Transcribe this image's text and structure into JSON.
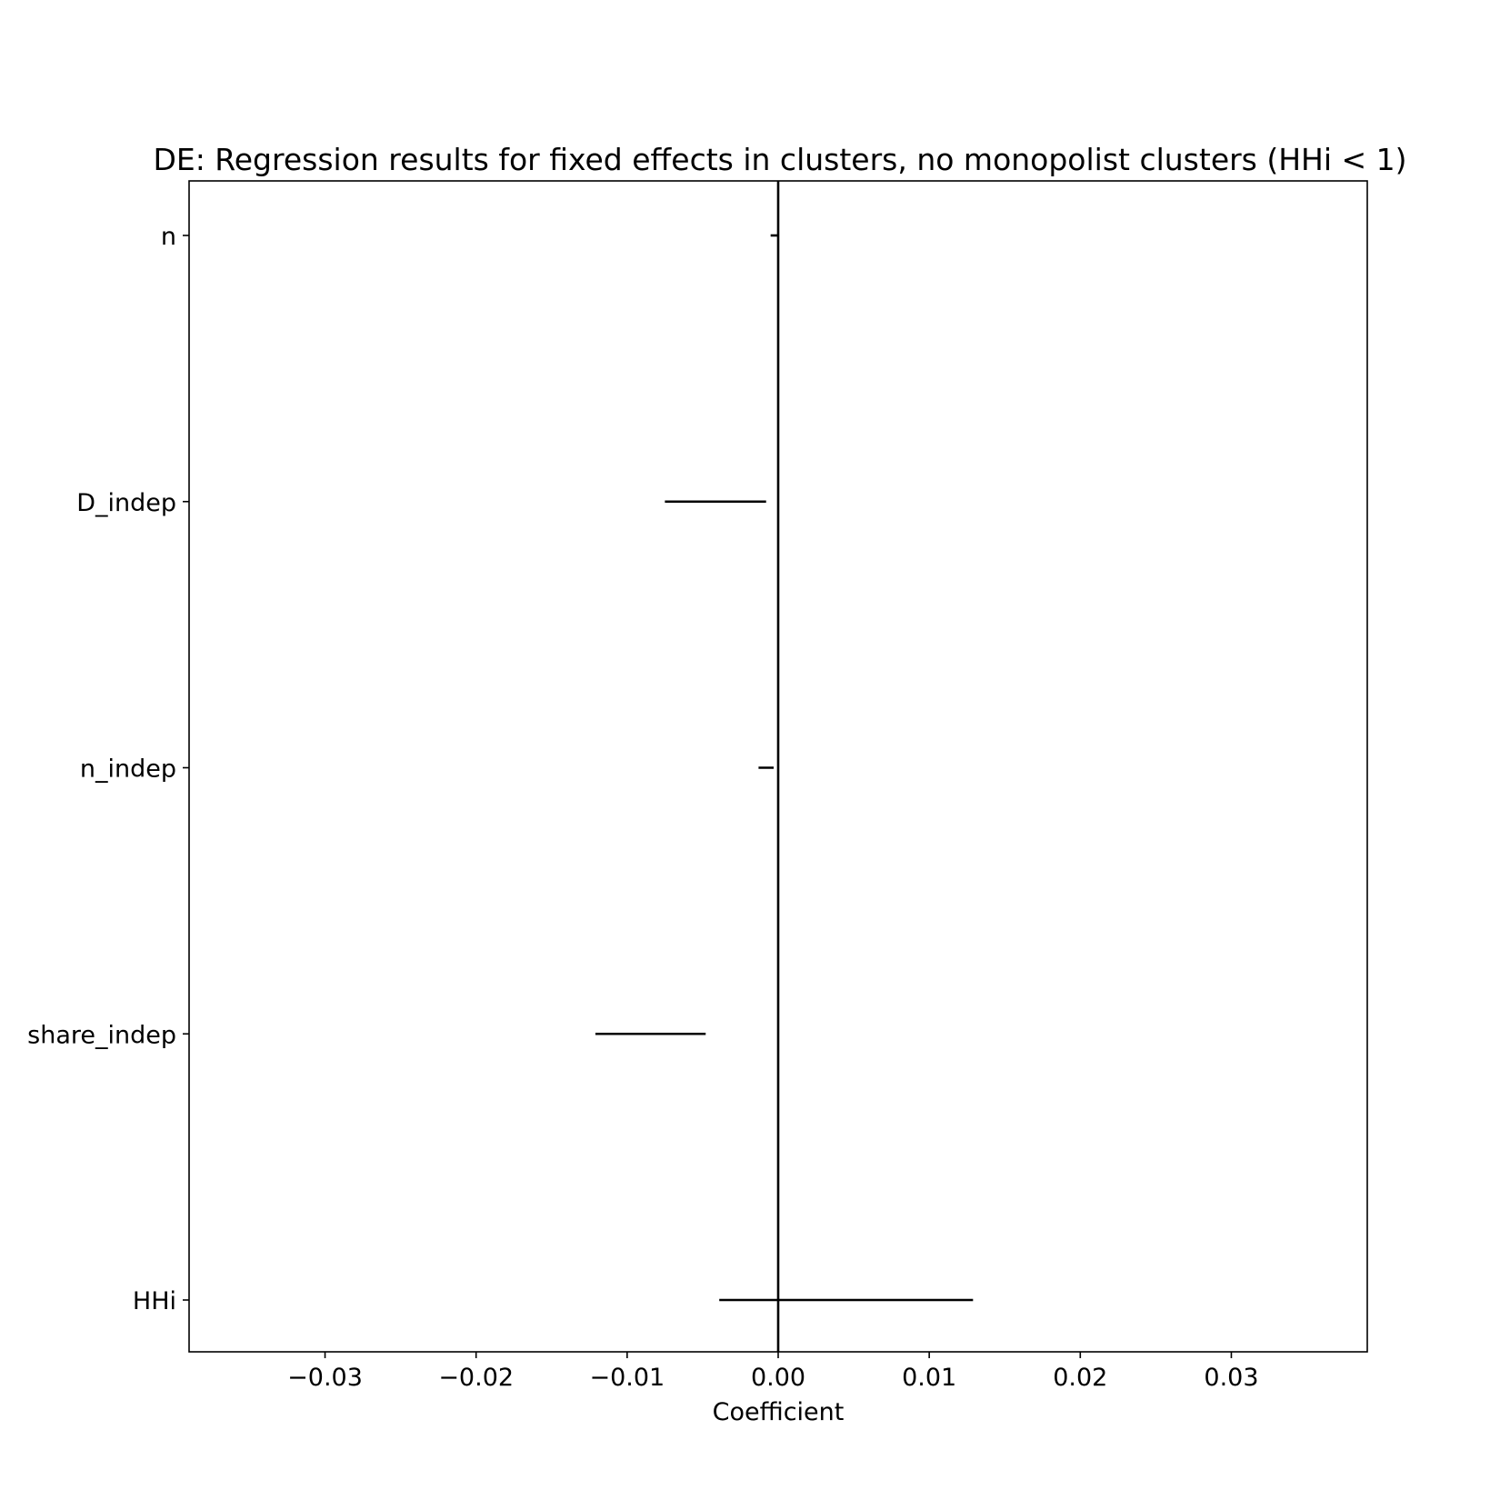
{
  "chart_data": {
    "type": "errorbar",
    "title": "DE: Regression results for fixed effects in clusters, no monopolist clusters (HHi < 1)",
    "xlabel": "Coefficient",
    "ylabel": "",
    "xlim": [
      -0.039,
      0.039
    ],
    "xticks": [
      -0.03,
      -0.02,
      -0.01,
      0.0,
      0.01,
      0.02,
      0.03
    ],
    "xtick_labels": [
      "−0.03",
      "−0.02",
      "−0.01",
      "0.00",
      "0.01",
      "0.02",
      "0.03"
    ],
    "categories": [
      "n",
      "D_indep",
      "n_indep",
      "share_indep",
      "HHi"
    ],
    "intervals": [
      {
        "name": "n",
        "low": -0.0005,
        "high": 0.0
      },
      {
        "name": "D_indep",
        "low": -0.0075,
        "high": -0.0008
      },
      {
        "name": "n_indep",
        "low": -0.0013,
        "high": -0.0003
      },
      {
        "name": "share_indep",
        "low": -0.0121,
        "high": -0.0048
      },
      {
        "name": "HHi",
        "low": -0.0039,
        "high": 0.0129
      }
    ],
    "reference_line_x": 0.0,
    "grid": false,
    "legend": "none",
    "line_color": "#000000"
  }
}
